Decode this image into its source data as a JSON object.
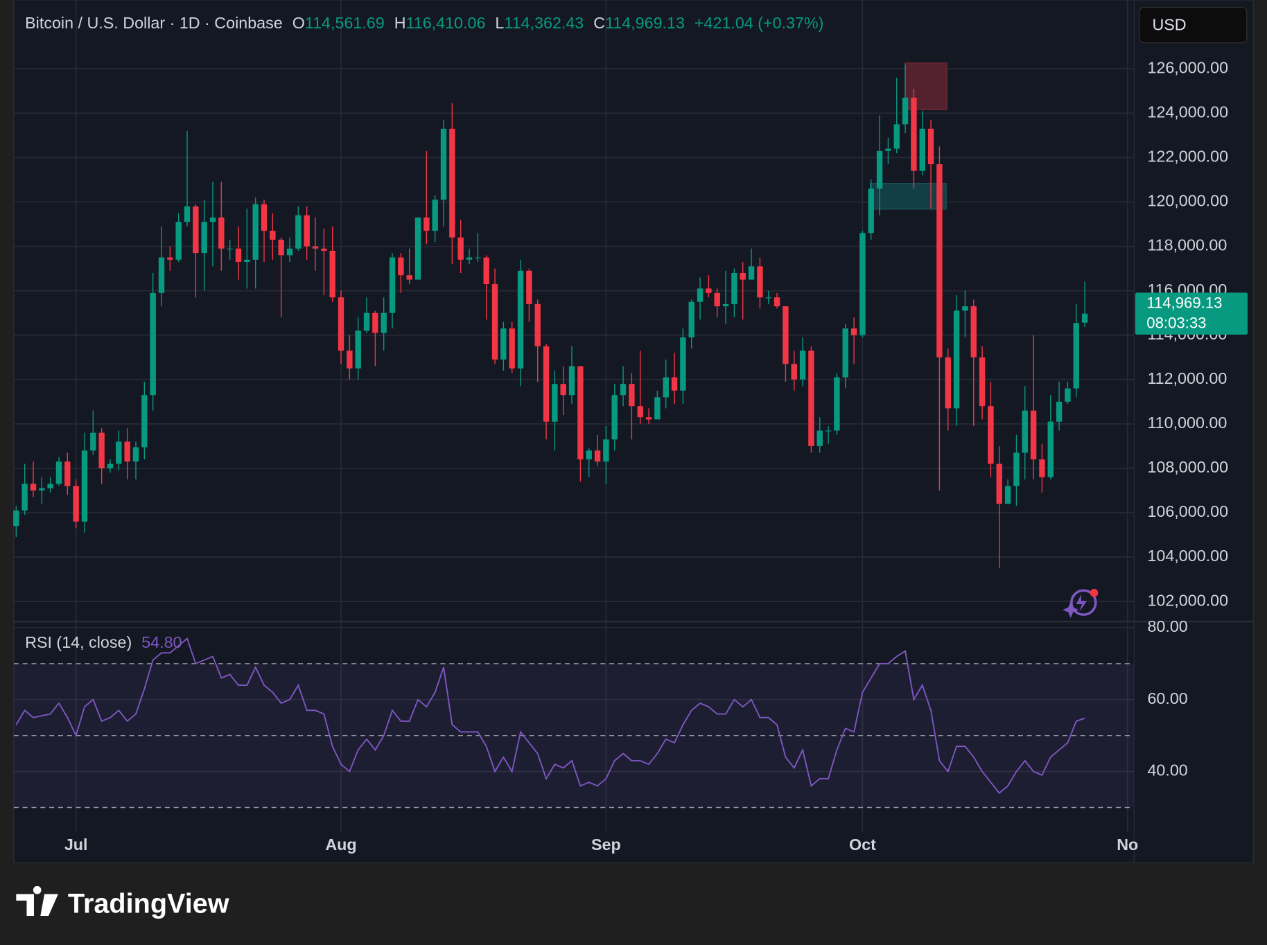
{
  "brand": "TradingView",
  "chart_data": [
    {
      "type": "candlestick",
      "title": "Bitcoin / U.S. Dollar · 1D · Coinbase",
      "ohlc_legend": [
        {
          "key": "O",
          "label": "114,561.69"
        },
        {
          "key": "H",
          "label": "116,410.06"
        },
        {
          "key": "L",
          "label": "114,362.43"
        },
        {
          "key": "C",
          "label": "114,969.13"
        }
      ],
      "change": "+421.04 (+0.37%)",
      "currency": "USD",
      "last_price": {
        "label": "114,969.13",
        "countdown": "08:03:33"
      },
      "up_color": "#089981",
      "down_color": "#f23645",
      "grid": true,
      "ylim": [
        101150,
        129100
      ],
      "yticks": [
        {
          "value": 102000,
          "label": "102,000.00"
        },
        {
          "value": 104000,
          "label": "104,000.00"
        },
        {
          "value": 106000,
          "label": "106,000.00"
        },
        {
          "value": 108000,
          "label": "108,000.00"
        },
        {
          "value": 110000,
          "label": "110,000.00"
        },
        {
          "value": 112000,
          "label": "112,000.00"
        },
        {
          "value": 114000,
          "label": "114,000.00"
        },
        {
          "value": 116000,
          "label": "116,000.00"
        },
        {
          "value": 118000,
          "label": "118,000.00"
        },
        {
          "value": 120000,
          "label": "120,000.00"
        },
        {
          "value": 122000,
          "label": "122,000.00"
        },
        {
          "value": 124000,
          "label": "124,000.00"
        },
        {
          "value": 126000,
          "label": "126,000.00"
        }
      ],
      "categories": [
        null,
        null,
        null,
        null,
        null,
        null,
        null,
        "Jul",
        null,
        null,
        null,
        null,
        null,
        null,
        null,
        null,
        null,
        null,
        null,
        null,
        null,
        null,
        null,
        null,
        null,
        null,
        null,
        null,
        null,
        null,
        null,
        null,
        null,
        null,
        null,
        null,
        null,
        null,
        "Aug",
        null,
        null,
        null,
        null,
        null,
        null,
        null,
        null,
        null,
        null,
        null,
        null,
        null,
        null,
        null,
        null,
        null,
        null,
        null,
        null,
        null,
        null,
        null,
        null,
        null,
        null,
        null,
        null,
        null,
        null,
        "Sep",
        null,
        null,
        null,
        null,
        null,
        null,
        null,
        null,
        null,
        null,
        null,
        null,
        null,
        null,
        null,
        null,
        null,
        null,
        null,
        null,
        null,
        null,
        null,
        null,
        null,
        null,
        null,
        null,
        null,
        "Oct",
        null,
        null,
        null,
        null,
        null,
        null,
        null,
        null,
        null,
        null,
        null,
        null,
        null,
        null,
        null,
        null,
        null,
        null,
        null,
        null,
        null,
        null,
        null,
        null,
        null,
        null,
        null,
        null,
        null,
        null,
        "No"
      ],
      "open": [
        105400,
        106100,
        107300,
        107000,
        107100,
        107300,
        108300,
        107200,
        105600,
        108800,
        109600,
        108000,
        108200,
        109200,
        108300,
        108950,
        111300,
        115900,
        117500,
        117400,
        119100,
        119800,
        117700,
        119100,
        119300,
        117900,
        117900,
        117300,
        117400,
        119900,
        118700,
        118300,
        117600,
        117900,
        119400,
        118000,
        117900,
        117800,
        115700,
        113300,
        112500,
        114200,
        115000,
        114100,
        115000,
        117500,
        116700,
        116500,
        119300,
        118700,
        120100,
        123300,
        118400,
        117400,
        117500,
        117500,
        116300,
        112900,
        114300,
        112500,
        116900,
        115400,
        113500,
        110100,
        111800,
        111300,
        112600,
        108400,
        108800,
        108300,
        109300,
        111300,
        111800,
        110800,
        110300,
        110200,
        111200,
        112100,
        111500,
        113900,
        115500,
        116100,
        115900,
        115300,
        115400,
        116800,
        116500,
        117100,
        115700,
        115700,
        115300,
        112700,
        112000,
        113300,
        109000,
        109700,
        109700,
        112100,
        114300,
        114000,
        118600,
        120600,
        122300,
        122400,
        123500,
        124700,
        121400,
        123300,
        121700,
        113000,
        110700,
        115100,
        115300,
        113000,
        110800,
        108200,
        106400,
        107200,
        108700,
        110600,
        108400,
        107600,
        110100,
        111000,
        111600,
        114561.69,
        null,
        null,
        null,
        null,
        null
      ],
      "high": [
        106300,
        108200,
        108300,
        107600,
        107600,
        108500,
        108700,
        107500,
        109600,
        110600,
        109800,
        108400,
        109700,
        109800,
        109200,
        111900,
        116800,
        118900,
        118000,
        119500,
        123200,
        119900,
        120100,
        120900,
        120900,
        118300,
        118900,
        119700,
        120200,
        120100,
        119500,
        118400,
        118400,
        119800,
        119800,
        119300,
        118800,
        118900,
        116000,
        114000,
        114800,
        115700,
        115100,
        115700,
        117700,
        117700,
        117900,
        119300,
        122300,
        120300,
        123700,
        124450,
        119200,
        117900,
        118600,
        117600,
        117000,
        114600,
        114600,
        117400,
        117000,
        115600,
        113600,
        112400,
        112600,
        113500,
        112600,
        108900,
        109500,
        109900,
        111800,
        112600,
        112300,
        113300,
        110700,
        111500,
        112900,
        113200,
        114300,
        115600,
        116600,
        116700,
        116100,
        116900,
        117000,
        117300,
        117900,
        117500,
        116000,
        115900,
        115300,
        113300,
        113900,
        113500,
        110300,
        109900,
        112300,
        114500,
        114800,
        118700,
        121000,
        123900,
        122900,
        125600,
        126200,
        125100,
        124100,
        123700,
        122500,
        113400,
        115800,
        116000,
        115600,
        113500,
        111900,
        109000,
        107500,
        109500,
        111700,
        114000,
        109100,
        111300,
        111900,
        111900,
        115400,
        116410.06,
        null,
        null,
        null,
        null,
        null
      ],
      "low": [
        104900,
        105900,
        106700,
        106400,
        106900,
        107200,
        106800,
        105300,
        105100,
        108600,
        107300,
        107800,
        107900,
        107500,
        107500,
        108400,
        110600,
        115300,
        116900,
        117300,
        118900,
        115700,
        116000,
        117100,
        116900,
        117400,
        116500,
        116100,
        116100,
        117300,
        117400,
        114800,
        117300,
        117800,
        117400,
        116900,
        115800,
        115500,
        112700,
        112000,
        112000,
        114100,
        112600,
        113300,
        114300,
        115900,
        116300,
        116500,
        118100,
        118200,
        118900,
        117200,
        116800,
        117200,
        117300,
        114700,
        112700,
        112400,
        112300,
        111700,
        114600,
        111900,
        109300,
        108800,
        110400,
        110900,
        107400,
        107600,
        108100,
        107300,
        108800,
        110800,
        109300,
        110000,
        110000,
        110200,
        110700,
        110900,
        110900,
        113400,
        114700,
        115700,
        114800,
        114500,
        114800,
        114700,
        116500,
        115200,
        115400,
        115200,
        111900,
        111500,
        111700,
        108700,
        108700,
        109100,
        109500,
        111600,
        112700,
        113900,
        118300,
        119400,
        121700,
        122200,
        123100,
        120600,
        121200,
        119700,
        107000,
        109700,
        109900,
        113900,
        109900,
        110200,
        107600,
        103500,
        106400,
        106300,
        107500,
        107500,
        106900,
        107500,
        109700,
        110900,
        111200,
        114362.43,
        null,
        null,
        null,
        null,
        null
      ],
      "close": [
        106100,
        107300,
        107000,
        107100,
        107300,
        108300,
        107200,
        105600,
        108800,
        109600,
        108000,
        108200,
        109200,
        108300,
        108950,
        111300,
        115900,
        117500,
        117400,
        119100,
        119800,
        117700,
        119100,
        119300,
        117900,
        117900,
        117300,
        117400,
        119900,
        118700,
        118300,
        117600,
        117900,
        119400,
        118000,
        117900,
        117800,
        115700,
        113300,
        112500,
        114200,
        115000,
        114100,
        115000,
        117500,
        116700,
        116500,
        119300,
        118700,
        120100,
        123300,
        118400,
        117400,
        117500,
        117500,
        116300,
        112900,
        114300,
        112500,
        116900,
        115400,
        113500,
        110100,
        111800,
        111300,
        112600,
        108400,
        108800,
        108300,
        109300,
        111300,
        111800,
        110800,
        110300,
        110200,
        111200,
        112100,
        111500,
        113900,
        115500,
        116100,
        115900,
        115300,
        115400,
        116800,
        116500,
        117100,
        115700,
        115700,
        115300,
        112700,
        112000,
        113300,
        109000,
        109700,
        109700,
        112100,
        114300,
        114000,
        118600,
        120600,
        122300,
        122400,
        123500,
        124700,
        121400,
        123300,
        121700,
        113000,
        110700,
        115100,
        115300,
        113000,
        110800,
        108200,
        106400,
        107200,
        108700,
        110600,
        108400,
        107600,
        110100,
        111000,
        111600,
        114548.09,
        114969.13,
        null,
        null,
        null,
        null,
        null
      ]
    },
    {
      "type": "line",
      "title": "RSI (14, close)",
      "value_label": "54.80",
      "color": "#7e57c2",
      "grid": true,
      "ylim": [
        23.2,
        81.6
      ],
      "yticks": [
        {
          "value": 40,
          "label": "40.00"
        },
        {
          "value": 60,
          "label": "60.00"
        },
        {
          "value": 80,
          "label": "80.00"
        }
      ],
      "levels": [
        30,
        50,
        70
      ],
      "values": [
        53,
        57,
        55,
        55.5,
        56,
        59,
        55,
        50,
        58,
        60,
        54,
        55,
        57,
        54,
        56,
        63,
        71,
        73,
        73,
        75,
        77,
        70,
        71,
        72,
        66,
        67,
        64,
        64,
        69,
        64,
        62,
        59,
        60,
        64,
        57,
        57,
        56,
        47,
        42,
        40,
        46,
        49,
        46,
        50,
        57,
        54,
        54,
        60,
        58,
        62,
        69,
        53,
        51,
        51,
        51,
        47,
        40,
        44,
        40,
        51,
        48,
        45,
        38,
        42,
        41,
        43,
        36,
        37,
        36,
        38,
        43,
        45,
        43,
        43,
        42,
        45,
        49,
        48,
        53,
        57,
        59,
        58,
        56,
        56,
        60,
        58,
        60,
        55,
        55,
        53,
        44,
        41,
        46,
        36,
        38,
        38,
        46,
        52,
        51,
        62,
        66,
        70,
        70,
        72,
        73.5,
        60,
        64,
        57,
        43,
        40,
        47,
        47,
        44,
        40,
        37,
        34,
        36,
        40,
        43,
        40,
        39,
        44,
        46,
        48,
        54,
        54.8,
        null,
        null,
        null,
        null,
        null
      ]
    }
  ]
}
